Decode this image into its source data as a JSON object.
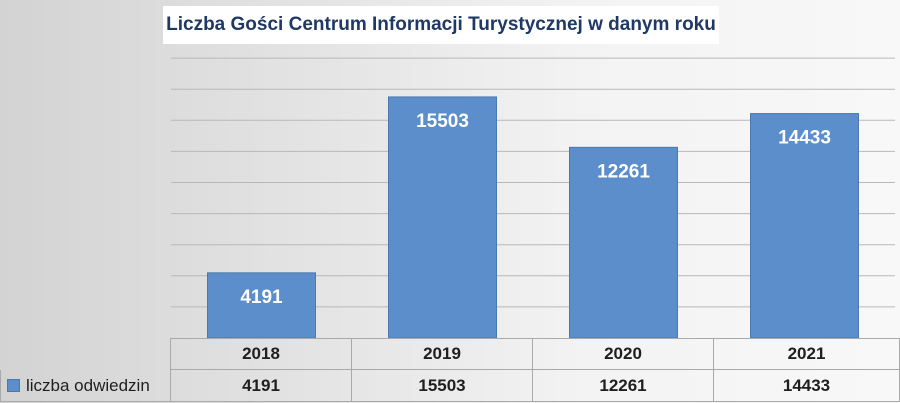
{
  "chart_data": {
    "type": "bar",
    "title": "Liczba Gości Centrum Informacji Turystycznej w danym roku",
    "categories": [
      "2018",
      "2019",
      "2020",
      "2021"
    ],
    "series": [
      {
        "name": "liczba odwiedzin",
        "values": [
          4191,
          15503,
          12261,
          14433
        ]
      }
    ],
    "ylim": [
      0,
      18000
    ],
    "grid": true,
    "legend": "data-table"
  },
  "colors": {
    "bar": "#5b8ecb",
    "title_text": "#1f3864"
  }
}
